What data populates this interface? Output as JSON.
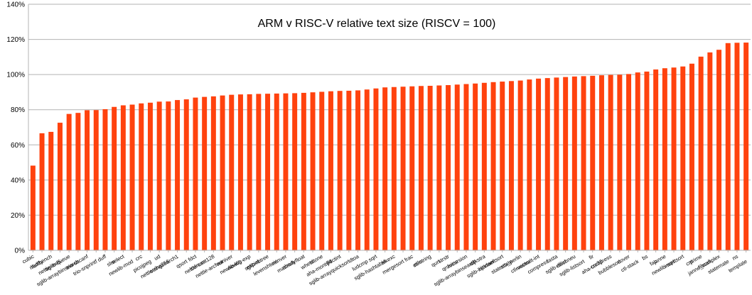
{
  "chart_data": {
    "type": "bar",
    "title": "ARM v RISC-V relative text size (RISCV = 100)",
    "xlabel": "",
    "ylabel": "",
    "ylim": [
      0,
      140
    ],
    "yticks": [
      "0%",
      "20%",
      "40%",
      "60%",
      "80%",
      "100%",
      "120%",
      "140%"
    ],
    "grid": true,
    "legend": "none",
    "bar_color": "#ff420e",
    "categories": [
      "cubic",
      "nbody",
      "huffbench",
      "nettle-md5",
      "sglib-queue",
      "sglib-arraybinsearch",
      "trio-sscanf",
      "trio-snprintf",
      "duff",
      "slre",
      "select",
      "newlib-mod",
      "crc",
      "picojpeg",
      "ud",
      "nettle-sha256",
      "stringsearch1",
      "qsort",
      "fdct",
      "lcdnum",
      "nettle-cast128",
      "nettle-arcfour",
      "miniver",
      "newlib-log",
      "newlib-exp",
      "expint",
      "sglib-rbtree",
      "levenshtein",
      "minver",
      "nbody",
      "matmult-float",
      "st",
      "whetstone",
      "aha-mont64",
      "jfdctint",
      "sglib-arrayquicksort",
      "dtoa",
      "ludcmp",
      "sqrt",
      "sglib-hashtable",
      "slkexc",
      "mergesort",
      "frac",
      "edn",
      "ctl-string",
      "qurt",
      "strstr",
      "qrduino",
      "recursion",
      "sglib-arraybinsearch",
      "dijkstra",
      "rijndael",
      "sglib-listinsertsort",
      "statemate",
      "stb_perlin",
      "ctl-vector",
      "matmult-int",
      "compress",
      "fasta",
      "sglib-dllist",
      "nsichneu",
      "sglib-listsort",
      "fir",
      "crc32",
      "aha-compress",
      "bubblesort",
      "cover",
      "ctl-stack",
      "bs",
      "fac",
      "janne",
      "newlib-sqrt",
      "insertsort",
      "cnt",
      "prime",
      "fibcall",
      "janne_complex",
      "statemate",
      "ns",
      "template"
    ],
    "values": [
      48.2,
      66.6,
      67.4,
      72.6,
      77.6,
      78.2,
      79.7,
      79.8,
      80.3,
      81.6,
      82.5,
      82.9,
      83.6,
      84.0,
      84.6,
      84.7,
      85.5,
      85.9,
      86.9,
      87.3,
      87.6,
      88.1,
      88.5,
      88.7,
      88.8,
      89.0,
      89.1,
      89.2,
      89.3,
      89.4,
      89.6,
      89.9,
      90.2,
      90.5,
      90.7,
      90.8,
      91.0,
      91.5,
      92.1,
      92.7,
      92.9,
      93.1,
      93.3,
      93.5,
      93.6,
      93.8,
      94.0,
      94.3,
      94.6,
      94.9,
      95.3,
      95.7,
      96.0,
      96.3,
      96.6,
      97.2,
      97.7,
      98.0,
      98.3,
      98.6,
      98.9,
      99.1,
      99.3,
      99.6,
      99.8,
      99.9,
      100.3,
      101.2,
      101.7,
      102.9,
      103.6,
      104.0,
      104.6,
      106.2,
      110.2,
      112.6,
      114.1,
      117.9,
      118.1,
      118.2
    ]
  }
}
